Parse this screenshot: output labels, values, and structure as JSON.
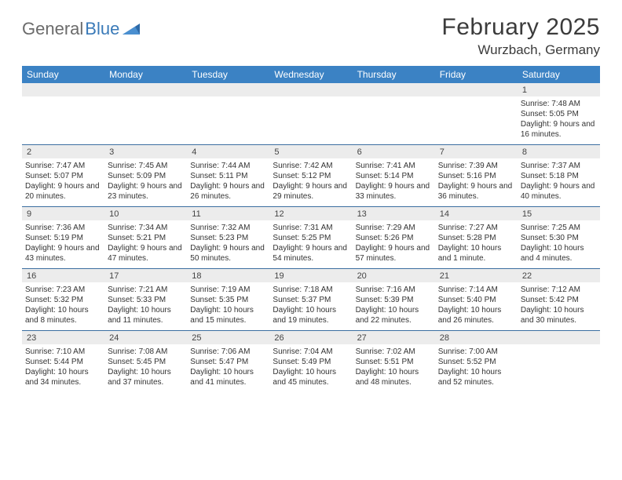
{
  "brand": {
    "part1": "General",
    "part2": "Blue"
  },
  "title": "February 2025",
  "location": "Wurzbach, Germany",
  "colors": {
    "header_bg": "#3b82c4",
    "header_text": "#ffffff",
    "daynum_bg": "#ececec",
    "rule": "#3b6ea0",
    "text": "#333333",
    "logo_gray": "#6b6b6b",
    "logo_blue": "#3a7ab8",
    "page_bg": "#ffffff"
  },
  "dayNames": [
    "Sunday",
    "Monday",
    "Tuesday",
    "Wednesday",
    "Thursday",
    "Friday",
    "Saturday"
  ],
  "weeks": [
    [
      {
        "n": "",
        "sr": "",
        "ss": "",
        "dl": ""
      },
      {
        "n": "",
        "sr": "",
        "ss": "",
        "dl": ""
      },
      {
        "n": "",
        "sr": "",
        "ss": "",
        "dl": ""
      },
      {
        "n": "",
        "sr": "",
        "ss": "",
        "dl": ""
      },
      {
        "n": "",
        "sr": "",
        "ss": "",
        "dl": ""
      },
      {
        "n": "",
        "sr": "",
        "ss": "",
        "dl": ""
      },
      {
        "n": "1",
        "sr": "Sunrise: 7:48 AM",
        "ss": "Sunset: 5:05 PM",
        "dl": "Daylight: 9 hours and 16 minutes."
      }
    ],
    [
      {
        "n": "2",
        "sr": "Sunrise: 7:47 AM",
        "ss": "Sunset: 5:07 PM",
        "dl": "Daylight: 9 hours and 20 minutes."
      },
      {
        "n": "3",
        "sr": "Sunrise: 7:45 AM",
        "ss": "Sunset: 5:09 PM",
        "dl": "Daylight: 9 hours and 23 minutes."
      },
      {
        "n": "4",
        "sr": "Sunrise: 7:44 AM",
        "ss": "Sunset: 5:11 PM",
        "dl": "Daylight: 9 hours and 26 minutes."
      },
      {
        "n": "5",
        "sr": "Sunrise: 7:42 AM",
        "ss": "Sunset: 5:12 PM",
        "dl": "Daylight: 9 hours and 29 minutes."
      },
      {
        "n": "6",
        "sr": "Sunrise: 7:41 AM",
        "ss": "Sunset: 5:14 PM",
        "dl": "Daylight: 9 hours and 33 minutes."
      },
      {
        "n": "7",
        "sr": "Sunrise: 7:39 AM",
        "ss": "Sunset: 5:16 PM",
        "dl": "Daylight: 9 hours and 36 minutes."
      },
      {
        "n": "8",
        "sr": "Sunrise: 7:37 AM",
        "ss": "Sunset: 5:18 PM",
        "dl": "Daylight: 9 hours and 40 minutes."
      }
    ],
    [
      {
        "n": "9",
        "sr": "Sunrise: 7:36 AM",
        "ss": "Sunset: 5:19 PM",
        "dl": "Daylight: 9 hours and 43 minutes."
      },
      {
        "n": "10",
        "sr": "Sunrise: 7:34 AM",
        "ss": "Sunset: 5:21 PM",
        "dl": "Daylight: 9 hours and 47 minutes."
      },
      {
        "n": "11",
        "sr": "Sunrise: 7:32 AM",
        "ss": "Sunset: 5:23 PM",
        "dl": "Daylight: 9 hours and 50 minutes."
      },
      {
        "n": "12",
        "sr": "Sunrise: 7:31 AM",
        "ss": "Sunset: 5:25 PM",
        "dl": "Daylight: 9 hours and 54 minutes."
      },
      {
        "n": "13",
        "sr": "Sunrise: 7:29 AM",
        "ss": "Sunset: 5:26 PM",
        "dl": "Daylight: 9 hours and 57 minutes."
      },
      {
        "n": "14",
        "sr": "Sunrise: 7:27 AM",
        "ss": "Sunset: 5:28 PM",
        "dl": "Daylight: 10 hours and 1 minute."
      },
      {
        "n": "15",
        "sr": "Sunrise: 7:25 AM",
        "ss": "Sunset: 5:30 PM",
        "dl": "Daylight: 10 hours and 4 minutes."
      }
    ],
    [
      {
        "n": "16",
        "sr": "Sunrise: 7:23 AM",
        "ss": "Sunset: 5:32 PM",
        "dl": "Daylight: 10 hours and 8 minutes."
      },
      {
        "n": "17",
        "sr": "Sunrise: 7:21 AM",
        "ss": "Sunset: 5:33 PM",
        "dl": "Daylight: 10 hours and 11 minutes."
      },
      {
        "n": "18",
        "sr": "Sunrise: 7:19 AM",
        "ss": "Sunset: 5:35 PM",
        "dl": "Daylight: 10 hours and 15 minutes."
      },
      {
        "n": "19",
        "sr": "Sunrise: 7:18 AM",
        "ss": "Sunset: 5:37 PM",
        "dl": "Daylight: 10 hours and 19 minutes."
      },
      {
        "n": "20",
        "sr": "Sunrise: 7:16 AM",
        "ss": "Sunset: 5:39 PM",
        "dl": "Daylight: 10 hours and 22 minutes."
      },
      {
        "n": "21",
        "sr": "Sunrise: 7:14 AM",
        "ss": "Sunset: 5:40 PM",
        "dl": "Daylight: 10 hours and 26 minutes."
      },
      {
        "n": "22",
        "sr": "Sunrise: 7:12 AM",
        "ss": "Sunset: 5:42 PM",
        "dl": "Daylight: 10 hours and 30 minutes."
      }
    ],
    [
      {
        "n": "23",
        "sr": "Sunrise: 7:10 AM",
        "ss": "Sunset: 5:44 PM",
        "dl": "Daylight: 10 hours and 34 minutes."
      },
      {
        "n": "24",
        "sr": "Sunrise: 7:08 AM",
        "ss": "Sunset: 5:45 PM",
        "dl": "Daylight: 10 hours and 37 minutes."
      },
      {
        "n": "25",
        "sr": "Sunrise: 7:06 AM",
        "ss": "Sunset: 5:47 PM",
        "dl": "Daylight: 10 hours and 41 minutes."
      },
      {
        "n": "26",
        "sr": "Sunrise: 7:04 AM",
        "ss": "Sunset: 5:49 PM",
        "dl": "Daylight: 10 hours and 45 minutes."
      },
      {
        "n": "27",
        "sr": "Sunrise: 7:02 AM",
        "ss": "Sunset: 5:51 PM",
        "dl": "Daylight: 10 hours and 48 minutes."
      },
      {
        "n": "28",
        "sr": "Sunrise: 7:00 AM",
        "ss": "Sunset: 5:52 PM",
        "dl": "Daylight: 10 hours and 52 minutes."
      },
      {
        "n": "",
        "sr": "",
        "ss": "",
        "dl": ""
      }
    ]
  ]
}
